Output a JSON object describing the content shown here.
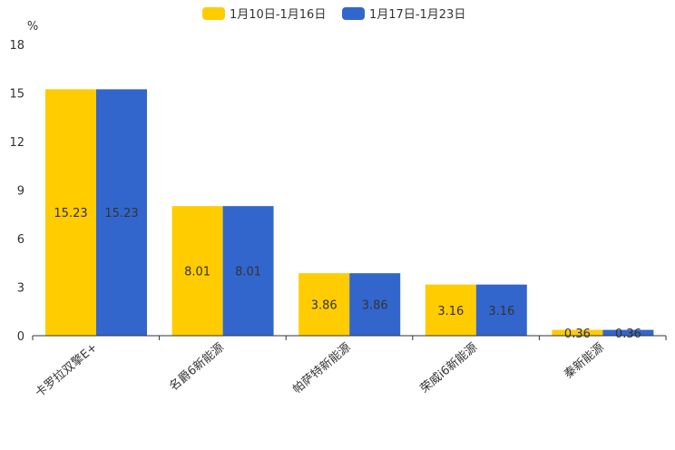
{
  "chart_data": {
    "type": "bar",
    "title": "",
    "xlabel": "",
    "ylabel": "%",
    "ylim": [
      0,
      18
    ],
    "yticks": [
      0,
      3,
      6,
      9,
      12,
      15,
      18
    ],
    "grid": false,
    "legend_position": "top",
    "categories": [
      "卡罗拉双擎E+",
      "名爵6新能源",
      "帕萨特新能源",
      "荣威i6新能源",
      "秦新能源"
    ],
    "series": [
      {
        "name": "1月10日-1月16日",
        "color": "#FFCC00",
        "values": [
          15.23,
          8.01,
          3.86,
          3.16,
          0.36
        ]
      },
      {
        "name": "1月17日-1月23日",
        "color": "#3366CC",
        "values": [
          15.23,
          8.01,
          3.86,
          3.16,
          0.36
        ]
      }
    ]
  }
}
